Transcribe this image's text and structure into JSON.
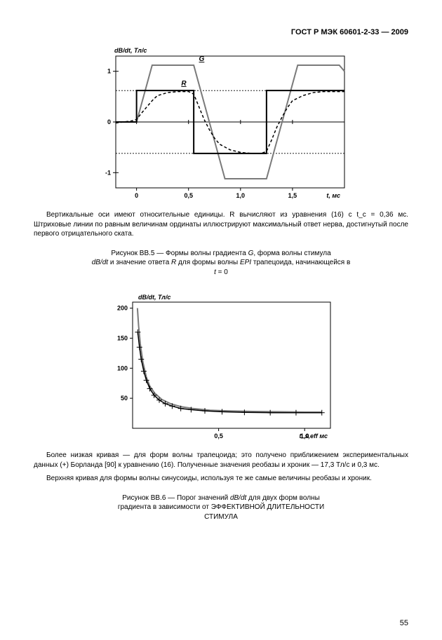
{
  "header": {
    "docnum": "ГОСТ Р МЭК 60601-2-33 — 2009"
  },
  "chart1": {
    "type": "line",
    "ylabel": "dB/dt, Тл/с",
    "xlabel_unit": "t, мс",
    "xlim": [
      -0.2,
      2.0
    ],
    "ylim": [
      -1.3,
      1.3
    ],
    "yticks": [
      -1,
      0,
      1
    ],
    "xticks": [
      0,
      0.5,
      1.0,
      1.5
    ],
    "xtick_labels": [
      "0",
      "0,5",
      "1,0",
      "1,5"
    ],
    "hlines": [
      0.62,
      -0.62
    ],
    "series_G": {
      "label": "G",
      "color": "#7a7a7a",
      "width": 2,
      "points": [
        [
          -0.2,
          0
        ],
        [
          0,
          0
        ],
        [
          0.15,
          1.12
        ],
        [
          0.55,
          1.12
        ],
        [
          0.85,
          -1.12
        ],
        [
          1.25,
          -1.12
        ],
        [
          1.55,
          1.12
        ],
        [
          1.95,
          1.12
        ],
        [
          2.0,
          1.0
        ]
      ]
    },
    "series_dBdt": {
      "label": "dB/dt",
      "color": "#000000",
      "width": 2,
      "points": [
        [
          -0.2,
          0
        ],
        [
          0,
          0
        ],
        [
          0,
          0.62
        ],
        [
          0.55,
          0.62
        ],
        [
          0.55,
          -0.62
        ],
        [
          1.25,
          -0.62
        ],
        [
          1.25,
          0.62
        ],
        [
          1.95,
          0.62
        ],
        [
          2.0,
          0.62
        ]
      ]
    },
    "series_R": {
      "label": "R",
      "color": "#000000",
      "dash": "4 3",
      "width": 1.5,
      "points": [
        [
          -0.2,
          -0.02
        ],
        [
          -0.05,
          0.02
        ],
        [
          0,
          0.05
        ],
        [
          0.05,
          0.18
        ],
        [
          0.1,
          0.3
        ],
        [
          0.15,
          0.42
        ],
        [
          0.2,
          0.52
        ],
        [
          0.3,
          0.58
        ],
        [
          0.4,
          0.6
        ],
        [
          0.5,
          0.6
        ],
        [
          0.55,
          0.55
        ],
        [
          0.6,
          0.3
        ],
        [
          0.65,
          0.05
        ],
        [
          0.7,
          -0.15
        ],
        [
          0.75,
          -0.32
        ],
        [
          0.8,
          -0.44
        ],
        [
          0.9,
          -0.55
        ],
        [
          1.0,
          -0.6
        ],
        [
          1.1,
          -0.62
        ],
        [
          1.2,
          -0.62
        ],
        [
          1.25,
          -0.58
        ],
        [
          1.3,
          -0.35
        ],
        [
          1.35,
          -0.1
        ],
        [
          1.4,
          0.1
        ],
        [
          1.45,
          0.28
        ],
        [
          1.5,
          0.42
        ],
        [
          1.6,
          0.52
        ],
        [
          1.7,
          0.58
        ],
        [
          1.8,
          0.6
        ],
        [
          1.9,
          0.6
        ],
        [
          2.0,
          0.6
        ]
      ]
    },
    "label_G_pos": [
      0.6,
      1.2
    ],
    "label_R_pos": [
      0.43,
      0.72
    ],
    "background_color": "#ffffff",
    "axis_color": "#000000"
  },
  "para1": {
    "line1": "Вертикальные оси имеют относительные единицы.  R  вычисляют  из  уравнения (16)  с  t_c   = 0,36 мс. Штриховые линии по равным величинам ординаты иллюстрируют максимальный ответ нерва, достигнутый после первого отрицательного ската."
  },
  "caption1": {
    "t1": "Рисунок ВВ.5 — Формы волны градиента ",
    "t2": "G",
    "t3": ", форма волны стимула ",
    "t4": "dB/dt",
    "t5": "  и  значение ответа ",
    "t6": "R",
    "t7": "  для  формы  волны  ",
    "t8": "EPI",
    "t9": " трапецоида, начинающейся в ",
    "t10": "t",
    "t11": " = 0"
  },
  "chart2": {
    "type": "line",
    "ylabel": "dB/dt, Тл/с",
    "xlabel_unit": "t_s,eff мс",
    "xlim": [
      0,
      1.15
    ],
    "ylim": [
      0,
      210
    ],
    "yticks": [
      50,
      100,
      150,
      200
    ],
    "xticks": [
      0.5,
      1.0
    ],
    "xtick_labels": [
      "0,5",
      "1,0"
    ],
    "series_upper": {
      "color": "#7a7a7a",
      "width": 2,
      "points": [
        [
          0.028,
          200
        ],
        [
          0.035,
          170
        ],
        [
          0.045,
          140
        ],
        [
          0.06,
          110
        ],
        [
          0.08,
          85
        ],
        [
          0.1,
          70
        ],
        [
          0.13,
          58
        ],
        [
          0.17,
          48
        ],
        [
          0.22,
          41
        ],
        [
          0.28,
          36
        ],
        [
          0.35,
          33
        ],
        [
          0.45,
          30
        ],
        [
          0.55,
          29
        ],
        [
          0.7,
          28
        ],
        [
          0.85,
          27.5
        ],
        [
          1.0,
          27
        ],
        [
          1.1,
          27
        ]
      ]
    },
    "series_lower": {
      "color": "#000000",
      "width": 1.5,
      "points": [
        [
          0.03,
          160
        ],
        [
          0.04,
          135
        ],
        [
          0.05,
          115
        ],
        [
          0.065,
          95
        ],
        [
          0.08,
          80
        ],
        [
          0.1,
          66
        ],
        [
          0.125,
          55
        ],
        [
          0.155,
          47
        ],
        [
          0.19,
          41
        ],
        [
          0.23,
          37
        ],
        [
          0.28,
          33
        ],
        [
          0.34,
          31
        ],
        [
          0.42,
          29
        ],
        [
          0.52,
          27.5
        ],
        [
          0.65,
          26.5
        ],
        [
          0.8,
          26
        ],
        [
          0.95,
          26
        ],
        [
          1.1,
          26
        ]
      ]
    },
    "markers_plus": {
      "color": "#000000",
      "size": 4,
      "points": [
        [
          0.03,
          160
        ],
        [
          0.04,
          135
        ],
        [
          0.05,
          115
        ],
        [
          0.065,
          95
        ],
        [
          0.08,
          80
        ],
        [
          0.1,
          66
        ],
        [
          0.125,
          55
        ],
        [
          0.155,
          47
        ],
        [
          0.19,
          41
        ],
        [
          0.23,
          37
        ],
        [
          0.28,
          33
        ],
        [
          0.34,
          31
        ],
        [
          0.42,
          29
        ],
        [
          0.52,
          27.5
        ],
        [
          0.65,
          26.5
        ],
        [
          0.8,
          26
        ],
        [
          0.95,
          26
        ],
        [
          1.1,
          26
        ]
      ]
    },
    "background_color": "#ffffff",
    "axis_color": "#000000"
  },
  "para2": {
    "line1": "Более низкая кривая — для форм волны трапецоида; это получено приближением экспериментальных данных (+) Борланда [90] к  уравнению (16). Полученные значения реобазы и хроник  — 17,3 Тл/с  и 0,3 мс.",
    "line2": "Верхняя кривая для формы волны синусоиды, используя те же самые величины реобазы и хроник."
  },
  "caption2": {
    "t1": "Рисунок  ВВ.6   —   Порог  значений ",
    "t2": "dB/dt",
    "t3": " для двух форм волны  градиента  в  зависимости  от  ЭФФЕКТИВНОЙ ДЛИТЕЛЬНОСТИ СТИМУЛА"
  },
  "page_number": "55"
}
